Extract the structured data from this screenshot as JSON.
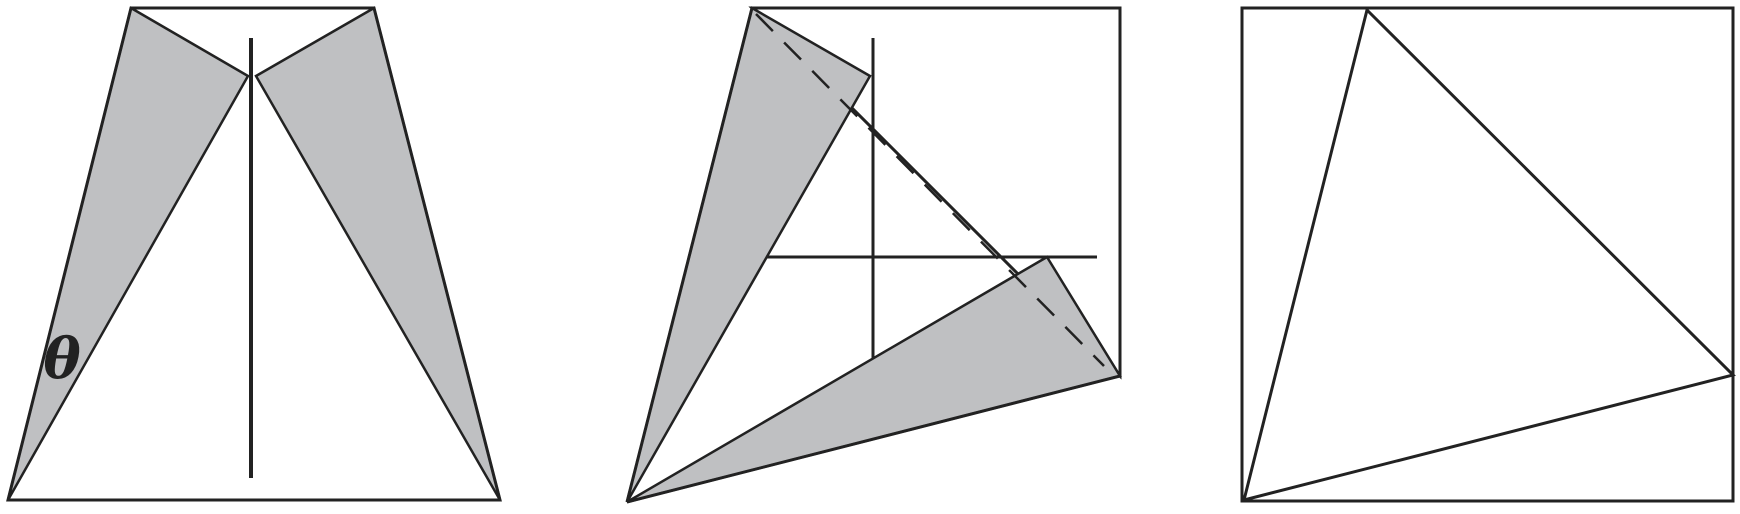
{
  "figure": {
    "panels": [
      {
        "name": "fold-step-1",
        "angle_label": "θ"
      },
      {
        "name": "fold-step-2"
      },
      {
        "name": "fold-step-3"
      }
    ]
  },
  "colors": {
    "stroke": "#222222",
    "shade": "#bfc0c2",
    "background": "#ffffff"
  }
}
